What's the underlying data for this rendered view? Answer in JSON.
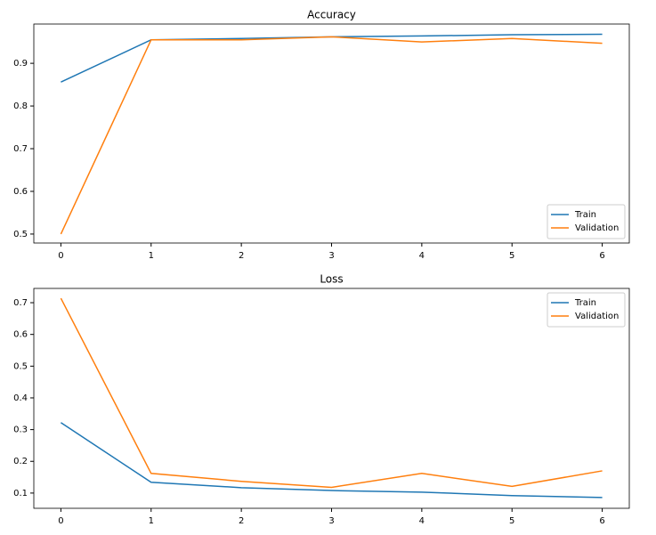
{
  "chart_data": [
    {
      "type": "line",
      "title": "Accuracy",
      "x": [
        0,
        1,
        2,
        3,
        4,
        5,
        6
      ],
      "series": [
        {
          "name": "Train",
          "color": "#1f77b4",
          "values": [
            0.856,
            0.955,
            0.958,
            0.962,
            0.964,
            0.967,
            0.968
          ]
        },
        {
          "name": "Validation",
          "color": "#ff7f0e",
          "values": [
            0.5,
            0.955,
            0.955,
            0.962,
            0.95,
            0.958,
            0.947
          ]
        }
      ],
      "xlim": [
        -0.3,
        6.3
      ],
      "xticks": [
        0,
        1,
        2,
        3,
        4,
        5,
        6
      ],
      "ylim": [
        0.479,
        0.992
      ],
      "yticks": [
        0.5,
        0.6,
        0.7,
        0.8,
        0.9
      ],
      "legend": "lower right"
    },
    {
      "type": "line",
      "title": "Loss",
      "x": [
        0,
        1,
        2,
        3,
        4,
        5,
        6
      ],
      "series": [
        {
          "name": "Train",
          "color": "#1f77b4",
          "values": [
            0.322,
            0.134,
            0.117,
            0.108,
            0.103,
            0.092,
            0.086
          ]
        },
        {
          "name": "Validation",
          "color": "#ff7f0e",
          "values": [
            0.714,
            0.162,
            0.137,
            0.118,
            0.162,
            0.121,
            0.17
          ]
        }
      ],
      "xlim": [
        -0.3,
        6.3
      ],
      "xticks": [
        0,
        1,
        2,
        3,
        4,
        5,
        6
      ],
      "ylim": [
        0.052,
        0.745
      ],
      "yticks": [
        0.1,
        0.2,
        0.3,
        0.4,
        0.5,
        0.6,
        0.7
      ],
      "legend": "upper right"
    }
  ]
}
